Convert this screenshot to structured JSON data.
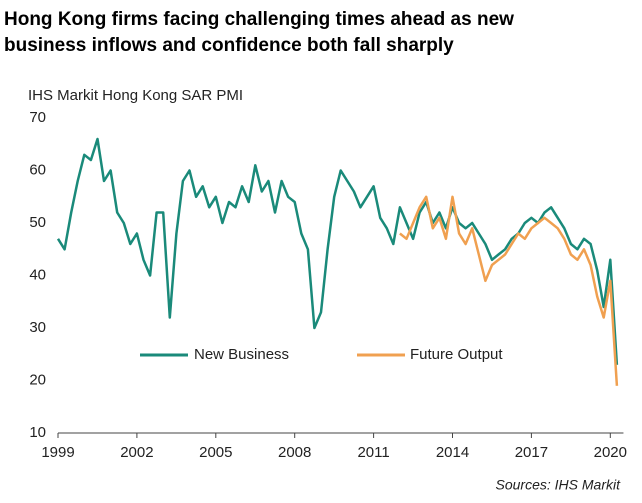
{
  "chart_data": {
    "type": "line",
    "title": "Hong Kong firms facing challenging times ahead as new business inflows and confidence both fall sharply",
    "y_label": "IHS Markit Hong Kong SAR PMI",
    "source": "Sources: IHS Markit",
    "x": [
      1999,
      1999.25,
      1999.5,
      1999.75,
      2000,
      2000.25,
      2000.5,
      2000.75,
      2001,
      2001.25,
      2001.5,
      2001.75,
      2002,
      2002.25,
      2002.5,
      2002.75,
      2003,
      2003.25,
      2003.5,
      2003.75,
      2004,
      2004.25,
      2004.5,
      2004.75,
      2005,
      2005.25,
      2005.5,
      2005.75,
      2006,
      2006.25,
      2006.5,
      2006.75,
      2007,
      2007.25,
      2007.5,
      2007.75,
      2008,
      2008.25,
      2008.5,
      2008.75,
      2009,
      2009.25,
      2009.5,
      2009.75,
      2010,
      2010.25,
      2010.5,
      2010.75,
      2011,
      2011.25,
      2011.5,
      2011.75,
      2012,
      2012.25,
      2012.5,
      2012.75,
      2013,
      2013.25,
      2013.5,
      2013.75,
      2014,
      2014.25,
      2014.5,
      2014.75,
      2015,
      2015.25,
      2015.5,
      2015.75,
      2016,
      2016.25,
      2016.5,
      2016.75,
      2017,
      2017.25,
      2017.5,
      2017.75,
      2018,
      2018.25,
      2018.5,
      2018.75,
      2019,
      2019.25,
      2019.5,
      2019.75,
      2020,
      2020.25
    ],
    "series": [
      {
        "name": "New Business",
        "color": "#1a8a7a",
        "values": [
          47,
          45,
          52,
          58,
          63,
          62,
          66,
          58,
          60,
          52,
          50,
          46,
          48,
          43,
          40,
          52,
          52,
          32,
          48,
          58,
          60,
          55,
          57,
          53,
          55,
          50,
          54,
          53,
          57,
          54,
          61,
          56,
          58,
          52,
          58,
          55,
          54,
          48,
          45,
          30,
          33,
          45,
          55,
          60,
          58,
          56,
          53,
          55,
          57,
          51,
          49,
          46,
          53,
          50,
          47,
          52,
          54,
          50,
          52,
          49,
          53,
          50,
          49,
          50,
          48,
          46,
          43,
          44,
          45,
          47,
          48,
          50,
          51,
          50,
          52,
          53,
          51,
          49,
          46,
          45,
          47,
          46,
          41,
          34,
          43,
          23
        ]
      },
      {
        "name": "Future Output",
        "color": "#f0a050",
        "values": [
          null,
          null,
          null,
          null,
          null,
          null,
          null,
          null,
          null,
          null,
          null,
          null,
          null,
          null,
          null,
          null,
          null,
          null,
          null,
          null,
          null,
          null,
          null,
          null,
          null,
          null,
          null,
          null,
          null,
          null,
          null,
          null,
          null,
          null,
          null,
          null,
          null,
          null,
          null,
          null,
          null,
          null,
          null,
          null,
          null,
          null,
          null,
          null,
          null,
          null,
          null,
          null,
          48,
          47,
          50,
          53,
          55,
          49,
          51,
          47,
          55,
          48,
          46,
          49,
          44,
          39,
          42,
          43,
          44,
          46,
          48,
          47,
          49,
          50,
          51,
          50,
          49,
          47,
          44,
          43,
          45,
          42,
          36,
          32,
          39,
          19
        ]
      }
    ],
    "xlim": [
      1999,
      2020.5
    ],
    "xticks": [
      1999,
      2002,
      2005,
      2008,
      2011,
      2014,
      2017,
      2020
    ],
    "ylim": [
      10,
      70
    ],
    "yticks": [
      10,
      20,
      30,
      40,
      50,
      60,
      70
    ],
    "legend": "center"
  }
}
